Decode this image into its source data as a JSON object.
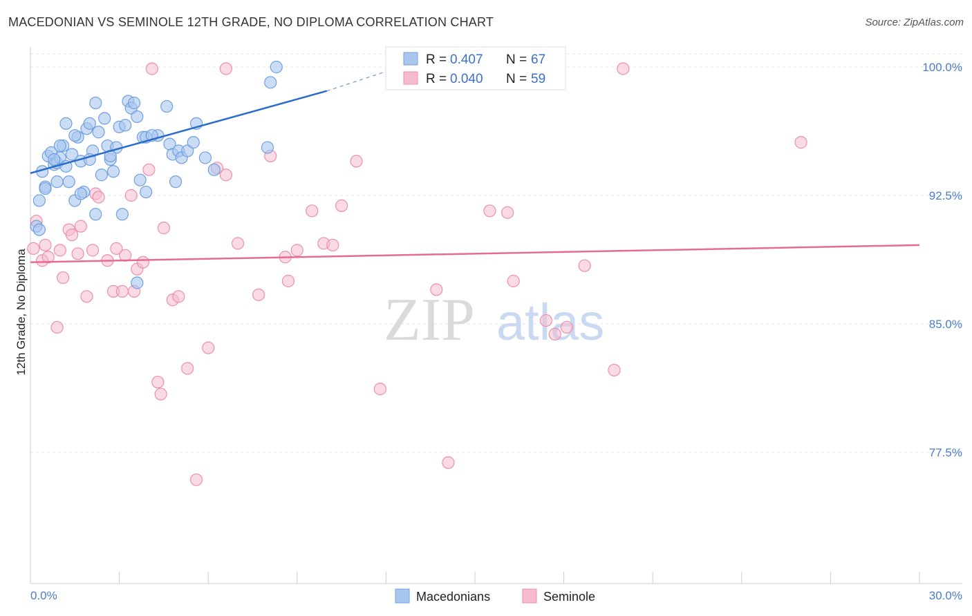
{
  "title": "MACEDONIAN VS SEMINOLE 12TH GRADE, NO DIPLOMA CORRELATION CHART",
  "source": "Source: ZipAtlas.com",
  "watermark": {
    "zip": "ZIP",
    "atlas": "atlas"
  },
  "colors": {
    "blue_fill": "#a9c6ef",
    "blue_stroke": "#6f9fe0",
    "blue_line": "#2a6ccc",
    "pink_fill": "#f6bccd",
    "pink_stroke": "#ec8fab",
    "pink_line": "#e46b95",
    "grid": "#e3e3e3",
    "axis_label": "#4a7cc9"
  },
  "chart_data": {
    "type": "scatter",
    "title": "MACEDONIAN VS SEMINOLE 12TH GRADE, NO DIPLOMA CORRELATION CHART",
    "xlabel": "",
    "ylabel": "12th Grade, No Diploma",
    "xlim": [
      0.0,
      30.0
    ],
    "ylim": [
      70.0,
      101.0
    ],
    "x_tick_labels": [
      "0.0%",
      "30.0%"
    ],
    "y_ticks": [
      77.5,
      85.0,
      92.5,
      100.0
    ],
    "y_tick_labels": [
      "77.5%",
      "85.0%",
      "92.5%",
      "100.0%"
    ],
    "legend": [
      {
        "series": "Macedonians",
        "R_label": "R =",
        "R": "0.407",
        "N_label": "N =",
        "N": "67"
      },
      {
        "series": "Seminole",
        "R_label": "R =",
        "R": "0.040",
        "N_label": "N =",
        "N": "59"
      }
    ],
    "series": [
      {
        "name": "Macedonians",
        "trend": {
          "x": [
            0.0,
            10.0
          ],
          "y": [
            93.8,
            98.6
          ],
          "dashed_to": [
            13.0,
            100.3
          ]
        },
        "points": [
          [
            0.2,
            90.7
          ],
          [
            0.3,
            92.2
          ],
          [
            0.4,
            93.9
          ],
          [
            0.5,
            93.0
          ],
          [
            0.6,
            94.8
          ],
          [
            0.7,
            95.0
          ],
          [
            0.8,
            94.3
          ],
          [
            0.9,
            94.4
          ],
          [
            0.9,
            93.3
          ],
          [
            1.0,
            94.7
          ],
          [
            1.1,
            95.4
          ],
          [
            1.2,
            94.2
          ],
          [
            1.3,
            93.3
          ],
          [
            1.4,
            94.9
          ],
          [
            1.5,
            92.2
          ],
          [
            1.6,
            95.9
          ],
          [
            1.7,
            94.5
          ],
          [
            1.8,
            92.7
          ],
          [
            1.9,
            96.4
          ],
          [
            2.0,
            96.7
          ],
          [
            2.1,
            95.1
          ],
          [
            2.2,
            97.9
          ],
          [
            2.3,
            96.2
          ],
          [
            2.4,
            93.7
          ],
          [
            2.5,
            97.0
          ],
          [
            2.6,
            95.4
          ],
          [
            2.7,
            94.6
          ],
          [
            2.8,
            93.9
          ],
          [
            2.9,
            95.3
          ],
          [
            3.0,
            96.5
          ],
          [
            3.1,
            91.4
          ],
          [
            3.2,
            96.6
          ],
          [
            3.3,
            98.0
          ],
          [
            3.4,
            97.6
          ],
          [
            3.5,
            97.9
          ],
          [
            3.6,
            97.1
          ],
          [
            3.7,
            93.4
          ],
          [
            3.8,
            95.9
          ],
          [
            3.9,
            92.7
          ],
          [
            4.3,
            96.0
          ],
          [
            4.6,
            97.7
          ],
          [
            4.7,
            95.5
          ],
          [
            4.8,
            94.9
          ],
          [
            4.9,
            93.3
          ],
          [
            5.0,
            95.1
          ],
          [
            5.1,
            94.7
          ],
          [
            5.3,
            95.1
          ],
          [
            5.5,
            95.6
          ],
          [
            5.6,
            96.7
          ],
          [
            5.9,
            94.7
          ],
          [
            6.2,
            94.0
          ],
          [
            8.0,
            95.3
          ],
          [
            8.1,
            99.1
          ],
          [
            8.3,
            100.0
          ],
          [
            3.6,
            87.4
          ],
          [
            0.3,
            90.5
          ],
          [
            0.5,
            92.9
          ],
          [
            1.0,
            95.4
          ],
          [
            1.5,
            96.0
          ],
          [
            2.0,
            94.6
          ],
          [
            1.2,
            96.7
          ],
          [
            2.7,
            94.8
          ],
          [
            3.9,
            95.9
          ],
          [
            4.1,
            96.0
          ],
          [
            1.7,
            92.6
          ],
          [
            0.8,
            94.6
          ],
          [
            2.2,
            91.4
          ]
        ]
      },
      {
        "name": "Seminole",
        "trend": {
          "x": [
            0.0,
            30.0
          ],
          "y": [
            88.6,
            89.6
          ]
        },
        "points": [
          [
            0.1,
            89.4
          ],
          [
            0.2,
            91.0
          ],
          [
            0.4,
            88.7
          ],
          [
            0.5,
            89.6
          ],
          [
            0.6,
            88.9
          ],
          [
            0.9,
            84.8
          ],
          [
            1.0,
            89.3
          ],
          [
            1.1,
            87.7
          ],
          [
            1.3,
            90.5
          ],
          [
            1.4,
            90.2
          ],
          [
            1.6,
            89.1
          ],
          [
            1.7,
            90.7
          ],
          [
            1.9,
            86.6
          ],
          [
            2.1,
            89.3
          ],
          [
            2.2,
            92.6
          ],
          [
            2.3,
            92.4
          ],
          [
            2.6,
            88.7
          ],
          [
            2.8,
            86.9
          ],
          [
            2.9,
            89.4
          ],
          [
            3.1,
            86.9
          ],
          [
            3.2,
            89.0
          ],
          [
            3.4,
            92.5
          ],
          [
            3.5,
            86.9
          ],
          [
            3.6,
            88.2
          ],
          [
            3.8,
            88.6
          ],
          [
            4.0,
            94.0
          ],
          [
            4.3,
            81.6
          ],
          [
            4.4,
            80.9
          ],
          [
            4.5,
            90.6
          ],
          [
            4.8,
            86.4
          ],
          [
            5.0,
            86.6
          ],
          [
            5.3,
            82.4
          ],
          [
            5.6,
            75.9
          ],
          [
            6.0,
            83.6
          ],
          [
            6.3,
            94.1
          ],
          [
            6.6,
            93.7
          ],
          [
            7.0,
            89.7
          ],
          [
            7.7,
            86.7
          ],
          [
            8.1,
            94.8
          ],
          [
            8.6,
            88.9
          ],
          [
            8.7,
            87.5
          ],
          [
            9.0,
            89.3
          ],
          [
            9.5,
            91.6
          ],
          [
            9.9,
            89.7
          ],
          [
            10.2,
            89.6
          ],
          [
            10.5,
            91.9
          ],
          [
            11.0,
            94.5
          ],
          [
            11.8,
            81.2
          ],
          [
            13.7,
            87.0
          ],
          [
            14.1,
            76.9
          ],
          [
            15.5,
            91.6
          ],
          [
            16.1,
            91.5
          ],
          [
            16.3,
            87.5
          ],
          [
            17.4,
            85.2
          ],
          [
            17.7,
            84.4
          ],
          [
            18.1,
            84.8
          ],
          [
            18.7,
            88.4
          ],
          [
            19.7,
            82.3
          ],
          [
            26.0,
            95.6
          ]
        ],
        "extra_top": [
          [
            4.1,
            99.9
          ],
          [
            6.6,
            99.9
          ],
          [
            20.0,
            99.9
          ]
        ]
      }
    ]
  }
}
